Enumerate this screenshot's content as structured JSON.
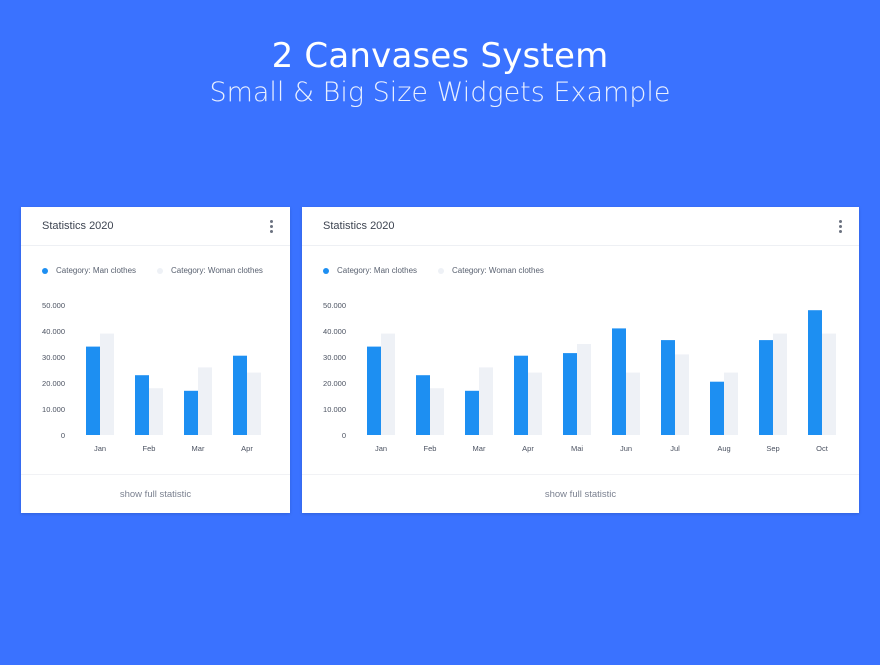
{
  "header": {
    "title": "2 Canvases System",
    "subtitle": "Small & Big Size Widgets Example"
  },
  "colors": {
    "background": "#3a72ff",
    "man": "#1d8ff2",
    "woman": "#eef1f6"
  },
  "widgets": [
    {
      "title": "Statistics 2020",
      "menu_icon": "more-vertical-icon",
      "legend": [
        "Category: Man clothes",
        "Category: Woman clothes"
      ],
      "footer_link": "show full statistic"
    },
    {
      "title": "Statistics 2020",
      "menu_icon": "more-vertical-icon",
      "legend": [
        "Category: Man clothes",
        "Category: Woman clothes"
      ],
      "footer_link": "show full statistic"
    }
  ],
  "chart_data": [
    {
      "type": "bar",
      "categories": [
        "Jan",
        "Feb",
        "Mar",
        "Apr"
      ],
      "series": [
        {
          "name": "Category: Man clothes",
          "values": [
            34000,
            23000,
            17000,
            30500
          ]
        },
        {
          "name": "Category: Woman clothes",
          "values": [
            39000,
            18000,
            26000,
            24000
          ]
        }
      ],
      "yticks": [
        "50.000",
        "40.000",
        "30.000",
        "20.000",
        "10.000",
        "0"
      ],
      "ylim": [
        0,
        50000
      ],
      "legend": "top-left",
      "grid": false
    },
    {
      "type": "bar",
      "categories": [
        "Jan",
        "Feb",
        "Mar",
        "Apr",
        "Mai",
        "Jun",
        "Jul",
        "Aug",
        "Sep",
        "Oct"
      ],
      "series": [
        {
          "name": "Category: Man clothes",
          "values": [
            34000,
            23000,
            17000,
            30500,
            31500,
            41000,
            36500,
            20500,
            36500,
            48000
          ]
        },
        {
          "name": "Category: Woman clothes",
          "values": [
            39000,
            18000,
            26000,
            24000,
            35000,
            24000,
            31000,
            24000,
            39000,
            39000
          ]
        }
      ],
      "yticks": [
        "50.000",
        "40.000",
        "30.000",
        "20.000",
        "10.000",
        "0"
      ],
      "ylim": [
        0,
        50000
      ],
      "legend": "top-left",
      "grid": false
    }
  ]
}
